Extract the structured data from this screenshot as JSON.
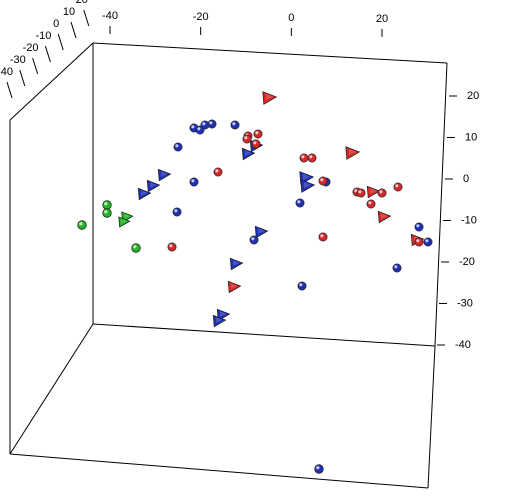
{
  "chart_data": {
    "type": "scatter",
    "dimensions": 3,
    "title": "",
    "xlabel": "",
    "ylabel": "",
    "zlabel": "",
    "grid": false,
    "legend": "none",
    "box": "full 3D bounding box",
    "axes": {
      "top_axis": {
        "ticks": [
          -40,
          -20,
          0,
          20
        ],
        "tick_labels": [
          "-40",
          "-20",
          "0",
          "20"
        ]
      },
      "right_axis": {
        "ticks": [
          20,
          10,
          0,
          -10,
          -20,
          -30,
          -40
        ],
        "tick_labels": [
          "20",
          "10",
          "0",
          "-10",
          "-20",
          "-30",
          "-40"
        ]
      },
      "left_axis": {
        "ticks": [
          -40,
          -30,
          -20,
          -10,
          0,
          10,
          20
        ],
        "tick_labels": [
          "-40",
          "-30",
          "-20",
          "-10",
          "0",
          "10",
          "20"
        ]
      }
    },
    "colors": {
      "red": "#d62828",
      "blue": "#1f2fb8",
      "green": "#22b822"
    },
    "series_markers": {
      "red": "sphere-and-cone",
      "blue": "sphere-and-cone",
      "green": "sphere-and-cone"
    },
    "points": {
      "red": [
        {
          "x": 20,
          "y": 20,
          "z": 10,
          "marker": "cone"
        },
        {
          "x": 6,
          "y": 15,
          "z": 8,
          "marker": "sphere"
        },
        {
          "x": 5,
          "y": 15,
          "z": 7,
          "marker": "sphere"
        },
        {
          "x": 10,
          "y": 10,
          "z": 10,
          "marker": "sphere"
        },
        {
          "x": 14,
          "y": 10,
          "z": 11,
          "marker": "sphere"
        },
        {
          "x": 15,
          "y": 5,
          "z": 10,
          "marker": "sphere"
        },
        {
          "x": 11,
          "y": 3,
          "z": 10,
          "marker": "sphere"
        },
        {
          "x": 21,
          "y": 10,
          "z": 8,
          "marker": "cone"
        },
        {
          "x": 22,
          "y": 3,
          "z": 8,
          "marker": "sphere"
        },
        {
          "x": 23,
          "y": 0,
          "z": 7,
          "marker": "sphere"
        },
        {
          "x": 25,
          "y": 0,
          "z": 6,
          "marker": "sphere"
        },
        {
          "x": 27,
          "y": 0,
          "z": 7,
          "marker": "sphere"
        },
        {
          "x": 30,
          "y": 0,
          "z": 6,
          "marker": "cone"
        },
        {
          "x": 24,
          "y": 1,
          "z": 5,
          "marker": "sphere"
        },
        {
          "x": 26,
          "y": -5,
          "z": 5,
          "marker": "sphere"
        },
        {
          "x": 24,
          "y": -4,
          "z": 7,
          "marker": "sphere"
        },
        {
          "x": 32,
          "y": -10,
          "z": 4,
          "marker": "cone"
        },
        {
          "x": 34,
          "y": -15,
          "z": 4,
          "marker": "cone"
        },
        {
          "x": -5,
          "y": 3,
          "z": 6,
          "marker": "sphere"
        },
        {
          "x": -14,
          "y": -12,
          "z": 5,
          "marker": "sphere"
        },
        {
          "x": 8,
          "y": -15,
          "z": 6,
          "marker": "sphere"
        },
        {
          "x": -2,
          "y": -32,
          "z": 5,
          "marker": "cone"
        }
      ],
      "blue": [
        {
          "x": -5,
          "y": 18,
          "z": 6,
          "marker": "sphere"
        },
        {
          "x": -7,
          "y": 17,
          "z": 5,
          "marker": "sphere"
        },
        {
          "x": -8,
          "y": 18,
          "z": 4,
          "marker": "sphere"
        },
        {
          "x": -10,
          "y": 18,
          "z": 5,
          "marker": "sphere"
        },
        {
          "x": 0,
          "y": 20,
          "z": 8,
          "marker": "sphere"
        },
        {
          "x": -16,
          "y": 10,
          "z": 4,
          "marker": "sphere"
        },
        {
          "x": 5,
          "y": 8,
          "z": 6,
          "marker": "cone"
        },
        {
          "x": 4,
          "y": 5,
          "z": 6,
          "marker": "cone"
        },
        {
          "x": -20,
          "y": 10,
          "z": 1,
          "marker": "cone"
        },
        {
          "x": -22,
          "y": 4,
          "z": 1,
          "marker": "cone"
        },
        {
          "x": -23,
          "y": 0,
          "z": 0,
          "marker": "cone"
        },
        {
          "x": -10,
          "y": 1,
          "z": 3,
          "marker": "sphere"
        },
        {
          "x": -15,
          "y": -4,
          "z": 3,
          "marker": "sphere"
        },
        {
          "x": 16,
          "y": 3,
          "z": 10,
          "marker": "cone"
        },
        {
          "x": 17,
          "y": 1,
          "z": 10,
          "marker": "cone"
        },
        {
          "x": 17,
          "y": -3,
          "z": 9,
          "marker": "sphere"
        },
        {
          "x": 20,
          "y": 1,
          "z": 11,
          "marker": "sphere"
        },
        {
          "x": 5,
          "y": -10,
          "z": 6,
          "marker": "cone"
        },
        {
          "x": 4,
          "y": -12,
          "z": 5,
          "marker": "sphere"
        },
        {
          "x": 1,
          "y": -21,
          "z": 5,
          "marker": "cone"
        },
        {
          "x": 17,
          "y": -30,
          "z": 8,
          "marker": "sphere"
        },
        {
          "x": -3,
          "y": -42,
          "z": 5,
          "marker": "cone"
        },
        {
          "x": -4,
          "y": -43,
          "z": 4,
          "marker": "cone"
        },
        {
          "x": 33,
          "y": -25,
          "z": 5,
          "marker": "sphere"
        },
        {
          "x": 38,
          "y": -12,
          "z": 5,
          "marker": "sphere"
        },
        {
          "x": 39,
          "y": -16,
          "z": 5,
          "marker": "sphere"
        },
        {
          "x": 14,
          "y": -45,
          "z": -38,
          "marker": "sphere"
        }
      ],
      "green": [
        {
          "x": -42,
          "y": -1,
          "z": -2,
          "marker": "sphere"
        },
        {
          "x": -42,
          "y": -2,
          "z": -3,
          "marker": "sphere"
        },
        {
          "x": -45,
          "y": -10,
          "z": -6,
          "marker": "sphere"
        },
        {
          "x": -34,
          "y": -3,
          "z": -1,
          "marker": "cone"
        },
        {
          "x": -35,
          "y": -4,
          "z": -2,
          "marker": "cone"
        },
        {
          "x": -35,
          "y": -13,
          "z": -4,
          "marker": "sphere"
        }
      ]
    }
  }
}
